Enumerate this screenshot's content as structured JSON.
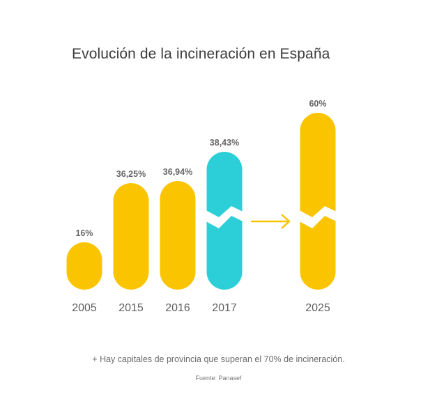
{
  "chart_data": {
    "type": "bar",
    "title": "Evolución de la incineración en España",
    "categories": [
      "2005",
      "2015",
      "2016",
      "2017",
      "2025"
    ],
    "values": [
      16,
      36.25,
      36.94,
      38.43,
      60
    ],
    "value_labels": [
      "16%",
      "36,25%",
      "36,94%",
      "38,43%",
      "60%"
    ],
    "bar_colors": [
      "#fbc400",
      "#fbc400",
      "#fbc400",
      "#2ccfd8",
      "#fbc400"
    ],
    "broken_axis_bars": [
      3,
      4
    ],
    "arrow_between": [
      3,
      4
    ],
    "arrow_color": "#fbc400"
  },
  "footnote": "+ Hay capitales de provincia que superan el 70% de incineración.",
  "source": "Fuente: Panasef"
}
